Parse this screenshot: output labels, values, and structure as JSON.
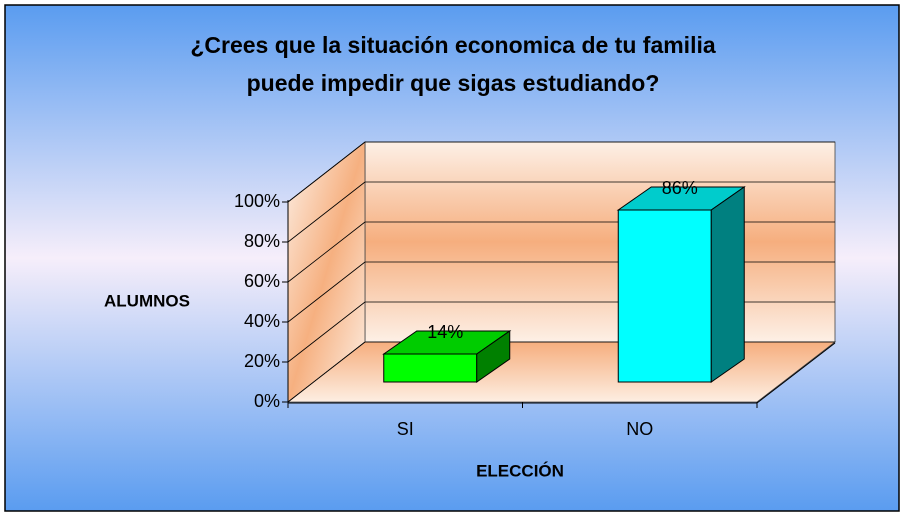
{
  "chart_data": {
    "type": "bar3d",
    "title": [
      "¿Crees que la situación economica de tu familia",
      "puede impedir que sigas estudiando?"
    ],
    "ylabel": "ALUMNOS",
    "xlabel": "ELECCIÓN",
    "categories": [
      "SI",
      "NO"
    ],
    "values": [
      14,
      86
    ],
    "value_labels": [
      "14%",
      "86%"
    ],
    "colors": [
      "#00ff00",
      "#00ffff"
    ],
    "ylim": [
      0,
      100
    ],
    "yticks": [
      {
        "value": 0,
        "label": "0%"
      },
      {
        "value": 20,
        "label": "20%"
      },
      {
        "value": 40,
        "label": "40%"
      },
      {
        "value": 60,
        "label": "60%"
      },
      {
        "value": 80,
        "label": "80%"
      },
      {
        "value": 100,
        "label": "100%"
      }
    ],
    "grid": true
  }
}
